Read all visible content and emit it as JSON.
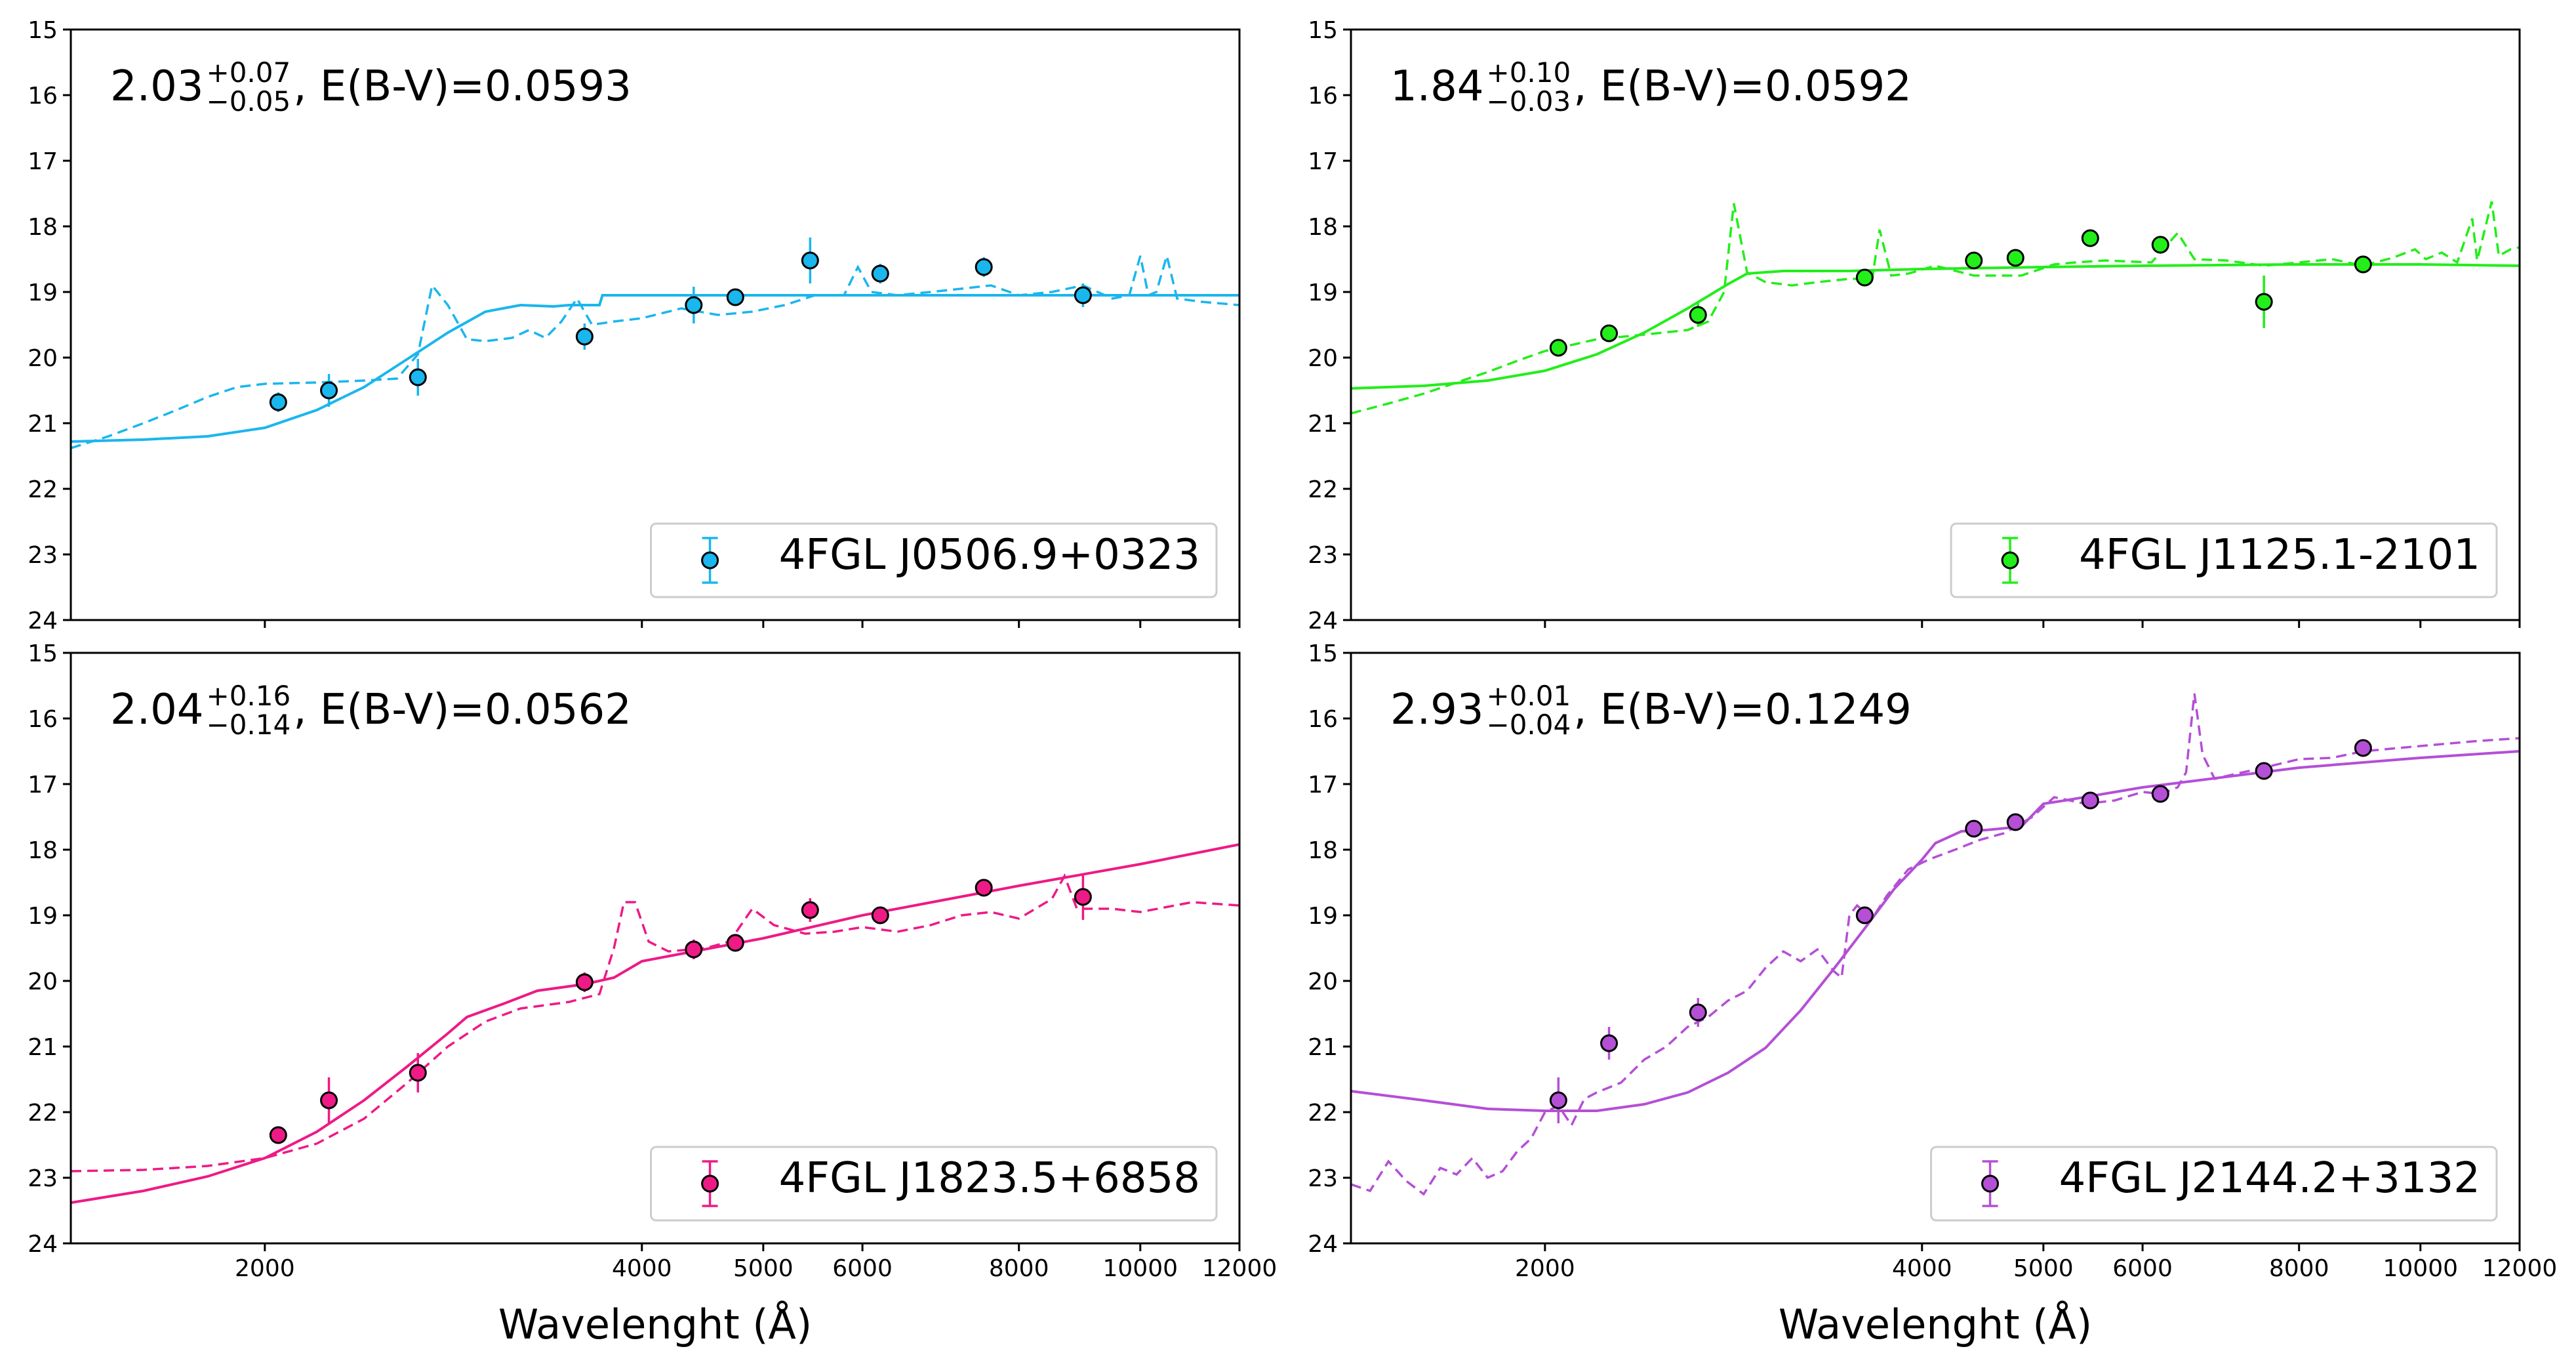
{
  "figure": {
    "xlabel": "Wavelenght (Å)",
    "x_range": [
      1400,
      12000
    ],
    "y_range": [
      24,
      15
    ],
    "x_tick_values": [
      2000,
      4000,
      5000,
      6000,
      8000,
      10000,
      12000
    ],
    "x_tick_labels": [
      "2000",
      "4000",
      "5000",
      "6000",
      "8000",
      "10000",
      "12000"
    ],
    "y_tick_values": [
      15,
      16,
      17,
      18,
      19,
      20,
      21,
      22,
      23,
      24
    ],
    "y_tick_labels": [
      "15",
      "16",
      "17",
      "18",
      "19",
      "20",
      "21",
      "22",
      "23",
      "24"
    ]
  },
  "chart_data": [
    {
      "type": "scatter",
      "panel": "top-left",
      "legend": "4FGL J0506.9+0323",
      "legend_position": "lower-right",
      "color": "#1ab6ee",
      "annotation": {
        "value": "2.03",
        "sup": "+0.07",
        "sub": "−0.05",
        "ebv": ",  E(B-V)=0.0593"
      },
      "show_xlabel": false,
      "points": [
        {
          "x": 2050,
          "y": 20.68,
          "err": 0.15
        },
        {
          "x": 2250,
          "y": 20.5,
          "err": 0.25
        },
        {
          "x": 2650,
          "y": 20.3,
          "err": 0.28
        },
        {
          "x": 3600,
          "y": 19.68,
          "err": 0.2
        },
        {
          "x": 4400,
          "y": 19.2,
          "err": 0.28
        },
        {
          "x": 4750,
          "y": 19.08,
          "err": 0.12
        },
        {
          "x": 5450,
          "y": 18.52,
          "err": 0.35
        },
        {
          "x": 6200,
          "y": 18.72,
          "err": 0.15
        },
        {
          "x": 7500,
          "y": 18.62,
          "err": 0.15
        },
        {
          "x": 9000,
          "y": 19.05,
          "err": 0.18
        }
      ],
      "solid": [
        [
          1400,
          21.28
        ],
        [
          1600,
          21.25
        ],
        [
          1800,
          21.2
        ],
        [
          2000,
          21.07
        ],
        [
          2200,
          20.8
        ],
        [
          2400,
          20.45
        ],
        [
          2600,
          20.02
        ],
        [
          2800,
          19.62
        ],
        [
          3000,
          19.3
        ],
        [
          3200,
          19.2
        ],
        [
          3400,
          19.22
        ],
        [
          3500,
          19.2
        ],
        [
          3700,
          19.2
        ],
        [
          3720,
          19.05
        ],
        [
          4000,
          19.05
        ],
        [
          5000,
          19.05
        ],
        [
          6000,
          19.05
        ],
        [
          8000,
          19.05
        ],
        [
          10000,
          19.05
        ],
        [
          12000,
          19.05
        ]
      ],
      "dashed": [
        [
          1400,
          21.38
        ],
        [
          1500,
          21.2
        ],
        [
          1600,
          21.0
        ],
        [
          1700,
          20.8
        ],
        [
          1800,
          20.6
        ],
        [
          1900,
          20.45
        ],
        [
          2000,
          20.4
        ],
        [
          2200,
          20.38
        ],
        [
          2400,
          20.35
        ],
        [
          2550,
          20.32
        ],
        [
          2650,
          19.95
        ],
        [
          2720,
          18.9
        ],
        [
          2800,
          19.2
        ],
        [
          2900,
          19.72
        ],
        [
          3000,
          19.75
        ],
        [
          3150,
          19.7
        ],
        [
          3250,
          19.58
        ],
        [
          3350,
          19.7
        ],
        [
          3450,
          19.45
        ],
        [
          3550,
          19.1
        ],
        [
          3650,
          19.5
        ],
        [
          3800,
          19.45
        ],
        [
          4000,
          19.4
        ],
        [
          4300,
          19.25
        ],
        [
          4600,
          19.35
        ],
        [
          4900,
          19.3
        ],
        [
          5200,
          19.2
        ],
        [
          5500,
          19.05
        ],
        [
          5800,
          19.05
        ],
        [
          5950,
          18.62
        ],
        [
          6100,
          19.0
        ],
        [
          6400,
          19.05
        ],
        [
          6800,
          19.0
        ],
        [
          7200,
          18.95
        ],
        [
          7600,
          18.9
        ],
        [
          8000,
          19.05
        ],
        [
          8500,
          19.0
        ],
        [
          9000,
          18.9
        ],
        [
          9500,
          19.1
        ],
        [
          9800,
          19.05
        ],
        [
          10000,
          18.45
        ],
        [
          10150,
          19.05
        ],
        [
          10300,
          19.0
        ],
        [
          10500,
          18.45
        ],
        [
          10700,
          19.1
        ],
        [
          11200,
          19.15
        ],
        [
          12000,
          19.2
        ]
      ]
    },
    {
      "type": "scatter",
      "panel": "top-right",
      "legend": "4FGL J1125.1-2101",
      "legend_position": "lower-right",
      "color": "#22ee1a",
      "annotation": {
        "value": "1.84",
        "sup": "+0.10",
        "sub": "−0.03",
        "ebv": ",  E(B-V)=0.0592"
      },
      "show_xlabel": false,
      "points": [
        {
          "x": 2050,
          "y": 19.85,
          "err": 0.12
        },
        {
          "x": 2250,
          "y": 19.63,
          "err": 0.1
        },
        {
          "x": 2650,
          "y": 19.35,
          "err": 0.18
        },
        {
          "x": 3600,
          "y": 18.78,
          "err": 0.12
        },
        {
          "x": 4400,
          "y": 18.52,
          "err": 0.12
        },
        {
          "x": 4750,
          "y": 18.48,
          "err": 0.1
        },
        {
          "x": 5450,
          "y": 18.18,
          "err": 0.1
        },
        {
          "x": 6200,
          "y": 18.28,
          "err": 0.1
        },
        {
          "x": 7500,
          "y": 19.15,
          "err": 0.4
        },
        {
          "x": 9000,
          "y": 18.58,
          "err": 0.12
        }
      ],
      "solid": [
        [
          1400,
          20.47
        ],
        [
          1600,
          20.43
        ],
        [
          1800,
          20.35
        ],
        [
          2000,
          20.2
        ],
        [
          2200,
          19.95
        ],
        [
          2400,
          19.62
        ],
        [
          2600,
          19.25
        ],
        [
          2800,
          18.88
        ],
        [
          2900,
          18.72
        ],
        [
          3100,
          18.68
        ],
        [
          3500,
          18.68
        ],
        [
          4000,
          18.65
        ],
        [
          5000,
          18.62
        ],
        [
          6000,
          18.6
        ],
        [
          8000,
          18.58
        ],
        [
          10000,
          18.58
        ],
        [
          12000,
          18.6
        ]
      ],
      "dashed": [
        [
          1400,
          20.85
        ],
        [
          1500,
          20.7
        ],
        [
          1600,
          20.55
        ],
        [
          1700,
          20.38
        ],
        [
          1800,
          20.22
        ],
        [
          1900,
          20.05
        ],
        [
          2000,
          19.9
        ],
        [
          2200,
          19.72
        ],
        [
          2400,
          19.65
        ],
        [
          2600,
          19.58
        ],
        [
          2700,
          19.45
        ],
        [
          2780,
          19.0
        ],
        [
          2830,
          17.65
        ],
        [
          2900,
          18.7
        ],
        [
          3000,
          18.85
        ],
        [
          3150,
          18.9
        ],
        [
          3300,
          18.85
        ],
        [
          3500,
          18.8
        ],
        [
          3650,
          18.8
        ],
        [
          3700,
          18.05
        ],
        [
          3780,
          18.75
        ],
        [
          3900,
          18.72
        ],
        [
          4100,
          18.6
        ],
        [
          4400,
          18.75
        ],
        [
          4800,
          18.75
        ],
        [
          5100,
          18.58
        ],
        [
          5300,
          18.55
        ],
        [
          5600,
          18.52
        ],
        [
          6100,
          18.55
        ],
        [
          6400,
          18.1
        ],
        [
          6600,
          18.5
        ],
        [
          7000,
          18.52
        ],
        [
          7500,
          18.6
        ],
        [
          8000,
          18.55
        ],
        [
          8500,
          18.5
        ],
        [
          9000,
          18.6
        ],
        [
          9500,
          18.48
        ],
        [
          9900,
          18.35
        ],
        [
          10100,
          18.5
        ],
        [
          10400,
          18.4
        ],
        [
          10700,
          18.55
        ],
        [
          11000,
          17.88
        ],
        [
          11100,
          18.52
        ],
        [
          11400,
          17.62
        ],
        [
          11550,
          18.45
        ],
        [
          11800,
          18.35
        ],
        [
          12000,
          18.32
        ]
      ]
    },
    {
      "type": "scatter",
      "panel": "bottom-left",
      "legend": "4FGL J1823.5+6858",
      "legend_position": "lower-right",
      "color": "#ee1a86",
      "annotation": {
        "value": "2.04",
        "sup": "+0.16",
        "sub": "−0.14",
        "ebv": ",  E(B-V)=0.0562"
      },
      "show_xlabel": true,
      "points": [
        {
          "x": 2050,
          "y": 22.35,
          "err": 0.12
        },
        {
          "x": 2250,
          "y": 21.82,
          "err": 0.35
        },
        {
          "x": 2650,
          "y": 21.4,
          "err": 0.3
        },
        {
          "x": 3600,
          "y": 20.02,
          "err": 0.15
        },
        {
          "x": 4400,
          "y": 19.52,
          "err": 0.15
        },
        {
          "x": 4750,
          "y": 19.42,
          "err": 0.12
        },
        {
          "x": 5450,
          "y": 18.92,
          "err": 0.18
        },
        {
          "x": 6200,
          "y": 19.0,
          "err": 0.12
        },
        {
          "x": 7500,
          "y": 18.58,
          "err": 0.1
        },
        {
          "x": 9000,
          "y": 18.72,
          "err": 0.35
        }
      ],
      "solid": [
        [
          1400,
          23.38
        ],
        [
          1600,
          23.2
        ],
        [
          1800,
          22.98
        ],
        [
          2000,
          22.7
        ],
        [
          2200,
          22.3
        ],
        [
          2400,
          21.82
        ],
        [
          2600,
          21.3
        ],
        [
          2800,
          20.8
        ],
        [
          2900,
          20.55
        ],
        [
          3100,
          20.35
        ],
        [
          3300,
          20.15
        ],
        [
          3600,
          20.05
        ],
        [
          3800,
          19.95
        ],
        [
          4000,
          19.7
        ],
        [
          5000,
          19.35
        ],
        [
          6000,
          19.0
        ],
        [
          8000,
          18.55
        ],
        [
          10000,
          18.22
        ],
        [
          12000,
          17.92
        ]
      ],
      "dashed": [
        [
          1400,
          22.9
        ],
        [
          1600,
          22.88
        ],
        [
          1800,
          22.82
        ],
        [
          2000,
          22.7
        ],
        [
          2200,
          22.48
        ],
        [
          2400,
          22.1
        ],
        [
          2600,
          21.55
        ],
        [
          2800,
          21.0
        ],
        [
          3000,
          20.62
        ],
        [
          3200,
          20.42
        ],
        [
          3500,
          20.32
        ],
        [
          3700,
          20.2
        ],
        [
          3800,
          19.5
        ],
        [
          3870,
          18.8
        ],
        [
          3950,
          18.8
        ],
        [
          4050,
          19.4
        ],
        [
          4200,
          19.55
        ],
        [
          4500,
          19.5
        ],
        [
          4700,
          19.4
        ],
        [
          4900,
          18.9
        ],
        [
          5100,
          19.15
        ],
        [
          5400,
          19.28
        ],
        [
          5700,
          19.25
        ],
        [
          6000,
          19.18
        ],
        [
          6400,
          19.25
        ],
        [
          6800,
          19.15
        ],
        [
          7200,
          19.0
        ],
        [
          7600,
          18.95
        ],
        [
          8000,
          19.05
        ],
        [
          8500,
          18.75
        ],
        [
          8700,
          18.4
        ],
        [
          8900,
          18.9
        ],
        [
          9500,
          18.9
        ],
        [
          10000,
          18.95
        ],
        [
          11000,
          18.8
        ],
        [
          12000,
          18.85
        ]
      ]
    },
    {
      "type": "scatter",
      "panel": "bottom-right",
      "legend": "4FGL J2144.2+3132",
      "legend_position": "lower-right",
      "color": "#b44fd6",
      "annotation": {
        "value": "2.93",
        "sup": "+0.01",
        "sub": "−0.04",
        "ebv": ",  E(B-V)=0.1249"
      },
      "show_xlabel": true,
      "points": [
        {
          "x": 2050,
          "y": 21.82,
          "err": 0.35
        },
        {
          "x": 2250,
          "y": 20.95,
          "err": 0.25
        },
        {
          "x": 2650,
          "y": 20.48,
          "err": 0.22
        },
        {
          "x": 3600,
          "y": 19.0,
          "err": 0.12
        },
        {
          "x": 4400,
          "y": 17.68,
          "err": 0.1
        },
        {
          "x": 4750,
          "y": 17.58,
          "err": 0.1
        },
        {
          "x": 5450,
          "y": 17.25,
          "err": 0.1
        },
        {
          "x": 6200,
          "y": 17.15,
          "err": 0.1
        },
        {
          "x": 7500,
          "y": 16.8,
          "err": 0.1
        },
        {
          "x": 9000,
          "y": 16.45,
          "err": 0.1
        }
      ],
      "solid": [
        [
          1400,
          21.68
        ],
        [
          1600,
          21.82
        ],
        [
          1800,
          21.95
        ],
        [
          2000,
          21.98
        ],
        [
          2200,
          21.98
        ],
        [
          2400,
          21.88
        ],
        [
          2600,
          21.7
        ],
        [
          2800,
          21.4
        ],
        [
          3000,
          21.02
        ],
        [
          3200,
          20.45
        ],
        [
          3400,
          19.82
        ],
        [
          3600,
          19.2
        ],
        [
          3800,
          18.6
        ],
        [
          4000,
          18.15
        ],
        [
          4100,
          17.9
        ],
        [
          4300,
          17.72
        ],
        [
          4500,
          17.7
        ],
        [
          4800,
          17.65
        ],
        [
          5000,
          17.3
        ],
        [
          5200,
          17.25
        ],
        [
          6000,
          17.05
        ],
        [
          8000,
          16.75
        ],
        [
          10000,
          16.6
        ],
        [
          12000,
          16.5
        ]
      ],
      "dashed": [
        [
          1400,
          23.1
        ],
        [
          1450,
          23.2
        ],
        [
          1500,
          22.75
        ],
        [
          1550,
          23.05
        ],
        [
          1600,
          23.25
        ],
        [
          1650,
          22.85
        ],
        [
          1700,
          22.95
        ],
        [
          1750,
          22.7
        ],
        [
          1800,
          23.0
        ],
        [
          1850,
          22.9
        ],
        [
          1900,
          22.6
        ],
        [
          1950,
          22.4
        ],
        [
          2000,
          22.0
        ],
        [
          2050,
          21.9
        ],
        [
          2100,
          22.2
        ],
        [
          2150,
          21.8
        ],
        [
          2200,
          21.7
        ],
        [
          2300,
          21.55
        ],
        [
          2400,
          21.2
        ],
        [
          2500,
          21.0
        ],
        [
          2600,
          20.7
        ],
        [
          2700,
          20.55
        ],
        [
          2800,
          20.3
        ],
        [
          2900,
          20.15
        ],
        [
          3000,
          19.8
        ],
        [
          3100,
          19.55
        ],
        [
          3200,
          19.7
        ],
        [
          3300,
          19.52
        ],
        [
          3400,
          19.85
        ],
        [
          3450,
          19.95
        ],
        [
          3500,
          19.0
        ],
        [
          3550,
          18.85
        ],
        [
          3650,
          19.05
        ],
        [
          3750,
          18.7
        ],
        [
          3900,
          18.3
        ],
        [
          4050,
          18.15
        ],
        [
          4250,
          18.0
        ],
        [
          4450,
          17.85
        ],
        [
          4650,
          17.75
        ],
        [
          4900,
          17.5
        ],
        [
          5100,
          17.2
        ],
        [
          5400,
          17.3
        ],
        [
          5700,
          17.25
        ],
        [
          6000,
          17.12
        ],
        [
          6200,
          17.15
        ],
        [
          6400,
          17.05
        ],
        [
          6500,
          16.82
        ],
        [
          6600,
          15.62
        ],
        [
          6700,
          16.55
        ],
        [
          6850,
          16.92
        ],
        [
          7100,
          16.85
        ],
        [
          7500,
          16.75
        ],
        [
          8000,
          16.62
        ],
        [
          8500,
          16.6
        ],
        [
          9000,
          16.5
        ],
        [
          10000,
          16.42
        ],
        [
          11000,
          16.35
        ],
        [
          12000,
          16.3
        ]
      ]
    }
  ]
}
